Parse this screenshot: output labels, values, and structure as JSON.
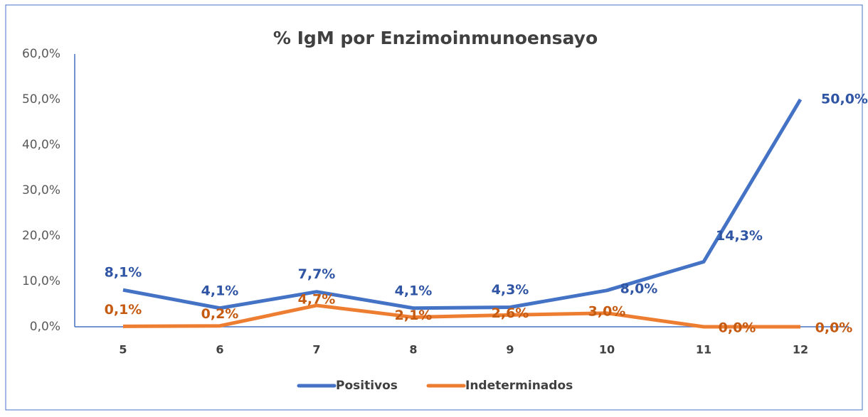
{
  "chart_data": {
    "type": "line",
    "title": "% IgM por Enzimoinmunoensayo",
    "categories": [
      "5",
      "6",
      "7",
      "8",
      "9",
      "10",
      "11",
      "12"
    ],
    "series": [
      {
        "name": "Positivos",
        "color": "#4472c4",
        "values": [
          8.1,
          4.1,
          7.7,
          4.1,
          4.3,
          8.0,
          14.3,
          50.0
        ],
        "value_labels": [
          "8,1%",
          "4,1%",
          "7,7%",
          "4,1%",
          "4,3%",
          "8,0%",
          "14,3%",
          "50,0%"
        ]
      },
      {
        "name": "Indeterminados",
        "color": "#ed7d31",
        "values": [
          0.1,
          0.2,
          4.7,
          2.1,
          2.6,
          3.0,
          0.0,
          0.0
        ],
        "value_labels": [
          "0,1%",
          "0,2%",
          "4,7%",
          "2,1%",
          "2,6%",
          "3,0%",
          "0,0%",
          "0,0%"
        ]
      }
    ],
    "ylim": [
      0,
      60
    ],
    "yticks": [
      {
        "value": 0,
        "label": "0,0%"
      },
      {
        "value": 10,
        "label": "10,0%"
      },
      {
        "value": 20,
        "label": "20,0%"
      },
      {
        "value": 30,
        "label": "30,0%"
      },
      {
        "value": 40,
        "label": "40,0%"
      },
      {
        "value": 50,
        "label": "50,0%"
      },
      {
        "value": 60,
        "label": "60,0%"
      }
    ],
    "legend": "bottom"
  }
}
